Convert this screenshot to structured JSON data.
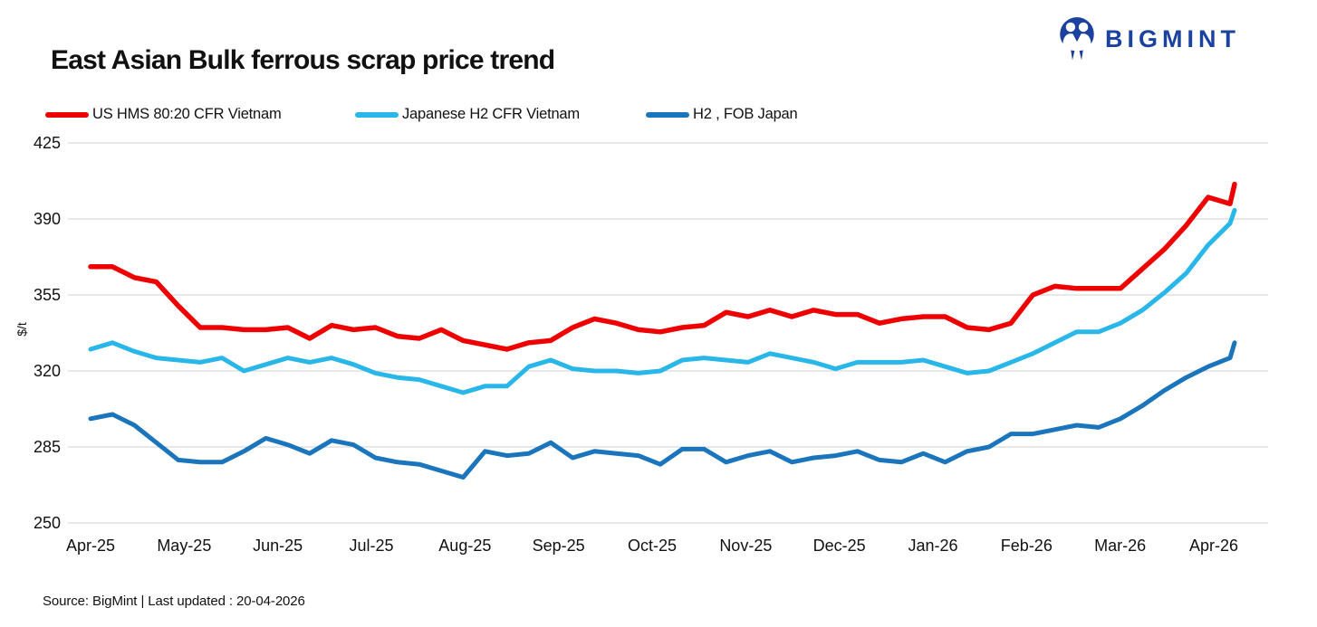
{
  "title": "East Asian Bulk ferrous scrap price trend",
  "logo": {
    "text": "BIGMINT",
    "color": "#1b429f",
    "icon": "bigmint-people-circle-icon"
  },
  "legend": {
    "items": [
      {
        "label": "US HMS 80:20 CFR Vietnam",
        "color": "#ee0000"
      },
      {
        "label": "Japanese H2 CFR Vietnam",
        "color": "#29b6e8"
      },
      {
        "label": "H2 , FOB Japan",
        "color": "#1b75bc"
      }
    ]
  },
  "footer": {
    "text": "Source: BigMint  | Last updated : 20-04-2026"
  },
  "colors": {
    "gridline": "#d9d9d9",
    "axis_text": "#111111",
    "background": "#ffffff"
  },
  "chart_data": {
    "type": "line",
    "title": "East Asian Bulk ferrous scrap price trend",
    "xlabel": "",
    "ylabel": "$/t",
    "ylim": [
      250,
      425
    ],
    "y_ticks": [
      250,
      285,
      320,
      355,
      390,
      425
    ],
    "grid": "horizontal-only",
    "legend_position": "top-left",
    "x_labels": [
      "Apr-25",
      "May-25",
      "Jun-25",
      "Jul-25",
      "Aug-25",
      "Sep-25",
      "Oct-25",
      "Nov-25",
      "Dec-25",
      "Jan-26",
      "Feb-26",
      "Mar-26",
      "Apr-26"
    ],
    "x_frequency": "weekly, final point is 20-04-2026 update tick",
    "series": [
      {
        "name": "US HMS 80:20 CFR Vietnam",
        "color": "#ee0000",
        "values": [
          368,
          368,
          363,
          361,
          350,
          340,
          340,
          339,
          339,
          340,
          335,
          341,
          339,
          340,
          336,
          335,
          339,
          334,
          332,
          330,
          333,
          334,
          340,
          344,
          342,
          339,
          338,
          340,
          341,
          347,
          345,
          348,
          345,
          348,
          346,
          346,
          342,
          344,
          345,
          345,
          340,
          339,
          342,
          355,
          359,
          358,
          358,
          358,
          367,
          376,
          387,
          400,
          397,
          406
        ]
      },
      {
        "name": "Japanese H2 CFR Vietnam",
        "color": "#29b6e8",
        "values": [
          330,
          333,
          329,
          326,
          325,
          324,
          326,
          320,
          323,
          326,
          324,
          326,
          323,
          319,
          317,
          316,
          313,
          310,
          313,
          313,
          322,
          325,
          321,
          320,
          320,
          319,
          320,
          325,
          326,
          325,
          324,
          328,
          326,
          324,
          321,
          324,
          324,
          324,
          325,
          322,
          319,
          320,
          324,
          328,
          333,
          338,
          338,
          342,
          348,
          356,
          365,
          378,
          388,
          394
        ]
      },
      {
        "name": "H2 , FOB Japan",
        "color": "#1b75bc",
        "values": [
          298,
          300,
          295,
          287,
          279,
          278,
          278,
          283,
          289,
          286,
          282,
          288,
          286,
          280,
          278,
          277,
          274,
          271,
          283,
          281,
          282,
          287,
          280,
          283,
          282,
          281,
          277,
          284,
          284,
          278,
          281,
          283,
          278,
          280,
          281,
          283,
          279,
          278,
          282,
          278,
          283,
          285,
          291,
          291,
          293,
          295,
          294,
          298,
          304,
          311,
          317,
          322,
          326,
          333
        ]
      }
    ]
  }
}
